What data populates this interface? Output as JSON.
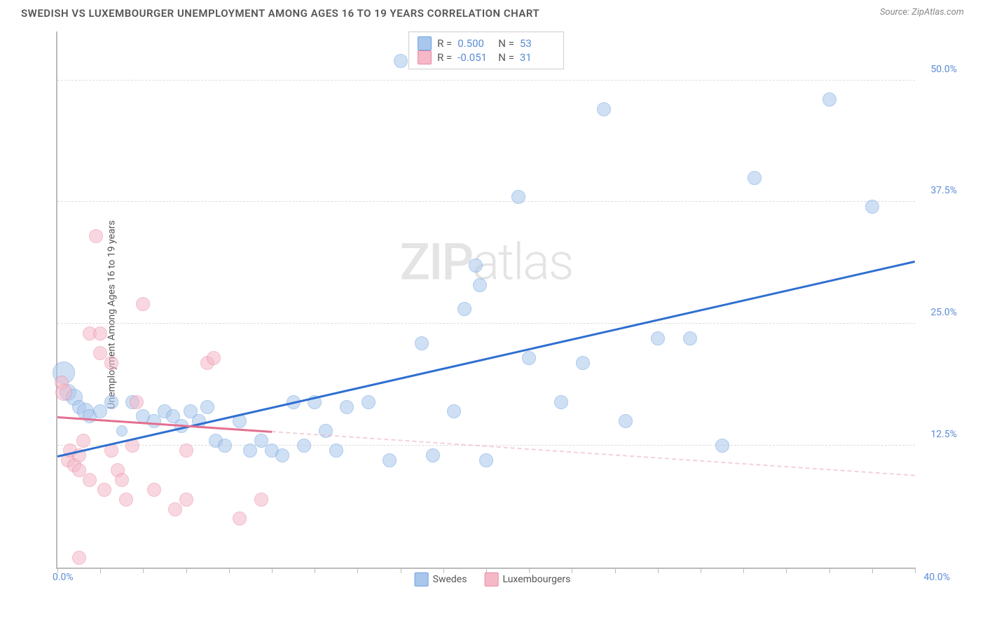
{
  "title": "SWEDISH VS LUXEMBOURGER UNEMPLOYMENT AMONG AGES 16 TO 19 YEARS CORRELATION CHART",
  "source_label": "Source: ZipAtlas.com",
  "y_label": "Unemployment Among Ages 16 to 19 years",
  "watermark": {
    "part1": "ZIP",
    "part2": "atlas"
  },
  "chart": {
    "type": "scatter",
    "xlim": [
      0,
      40
    ],
    "ylim": [
      0,
      55
    ],
    "x_axis_label_left": "0.0%",
    "x_axis_label_right": "40.0%",
    "y_ticks": [
      {
        "v": 12.5,
        "label": "12.5%"
      },
      {
        "v": 25.0,
        "label": "25.0%"
      },
      {
        "v": 37.5,
        "label": "37.5%"
      },
      {
        "v": 50.0,
        "label": "50.0%"
      }
    ],
    "y_grid_dashed": true,
    "x_tick_positions": [
      0,
      2,
      4,
      6,
      8,
      10,
      12,
      14,
      16,
      18,
      20,
      22,
      24,
      26,
      28,
      30,
      32,
      34,
      36,
      38,
      40
    ],
    "background_color": "#ffffff",
    "grid_color": "#dddddd",
    "axis_color": "#bbbbbb",
    "tick_label_color": "#5b8dd6",
    "series": [
      {
        "name": "Swedes",
        "fill_color": "#a9c7ec",
        "stroke_color": "#6d9fe0",
        "fill_opacity": 0.55,
        "marker_radius_range": [
          8,
          16
        ],
        "stats": {
          "R": "0.500",
          "N": "53"
        },
        "trend": {
          "x1": 0,
          "y1": 11.5,
          "x2": 40,
          "y2": 31.5,
          "color": "#2f6fd0",
          "width": 3
        },
        "points": [
          {
            "x": 0.3,
            "y": 20,
            "r": 16
          },
          {
            "x": 0.5,
            "y": 18,
            "r": 12
          },
          {
            "x": 0.8,
            "y": 17.5,
            "r": 12
          },
          {
            "x": 1.0,
            "y": 16.5,
            "r": 10
          },
          {
            "x": 1.3,
            "y": 16,
            "r": 12
          },
          {
            "x": 1.5,
            "y": 15.5,
            "r": 10
          },
          {
            "x": 2.0,
            "y": 16,
            "r": 10
          },
          {
            "x": 2.5,
            "y": 17,
            "r": 10
          },
          {
            "x": 3.0,
            "y": 14,
            "r": 8
          },
          {
            "x": 3.5,
            "y": 17,
            "r": 10
          },
          {
            "x": 4.0,
            "y": 15.5,
            "r": 10
          },
          {
            "x": 4.5,
            "y": 15,
            "r": 10
          },
          {
            "x": 5.0,
            "y": 16,
            "r": 10
          },
          {
            "x": 5.4,
            "y": 15.5,
            "r": 10
          },
          {
            "x": 5.8,
            "y": 14.5,
            "r": 10
          },
          {
            "x": 6.2,
            "y": 16,
            "r": 10
          },
          {
            "x": 6.6,
            "y": 15,
            "r": 10
          },
          {
            "x": 7.0,
            "y": 16.5,
            "r": 10
          },
          {
            "x": 7.4,
            "y": 13,
            "r": 10
          },
          {
            "x": 7.8,
            "y": 12.5,
            "r": 10
          },
          {
            "x": 8.5,
            "y": 15,
            "r": 10
          },
          {
            "x": 9.0,
            "y": 12,
            "r": 10
          },
          {
            "x": 9.5,
            "y": 13,
            "r": 10
          },
          {
            "x": 10.0,
            "y": 12,
            "r": 10
          },
          {
            "x": 10.5,
            "y": 11.5,
            "r": 10
          },
          {
            "x": 11.0,
            "y": 17,
            "r": 10
          },
          {
            "x": 11.5,
            "y": 12.5,
            "r": 10
          },
          {
            "x": 12.0,
            "y": 17,
            "r": 10
          },
          {
            "x": 12.5,
            "y": 14,
            "r": 10
          },
          {
            "x": 13.0,
            "y": 12,
            "r": 10
          },
          {
            "x": 13.5,
            "y": 16.5,
            "r": 10
          },
          {
            "x": 14.5,
            "y": 17,
            "r": 10
          },
          {
            "x": 15.5,
            "y": 11,
            "r": 10
          },
          {
            "x": 16.0,
            "y": 52,
            "r": 10
          },
          {
            "x": 17.0,
            "y": 23,
            "r": 10
          },
          {
            "x": 17.5,
            "y": 11.5,
            "r": 10
          },
          {
            "x": 18.5,
            "y": 16,
            "r": 10
          },
          {
            "x": 19.0,
            "y": 26.5,
            "r": 10
          },
          {
            "x": 19.5,
            "y": 31,
            "r": 10
          },
          {
            "x": 19.7,
            "y": 29,
            "r": 10
          },
          {
            "x": 20.0,
            "y": 11,
            "r": 10
          },
          {
            "x": 21.5,
            "y": 38,
            "r": 10
          },
          {
            "x": 22.0,
            "y": 21.5,
            "r": 10
          },
          {
            "x": 23.5,
            "y": 17,
            "r": 10
          },
          {
            "x": 24.5,
            "y": 21,
            "r": 10
          },
          {
            "x": 25.5,
            "y": 47,
            "r": 10
          },
          {
            "x": 26.5,
            "y": 15,
            "r": 10
          },
          {
            "x": 28.0,
            "y": 23.5,
            "r": 10
          },
          {
            "x": 29.5,
            "y": 23.5,
            "r": 10
          },
          {
            "x": 31.0,
            "y": 12.5,
            "r": 10
          },
          {
            "x": 32.5,
            "y": 40,
            "r": 10
          },
          {
            "x": 36.0,
            "y": 48,
            "r": 10
          },
          {
            "x": 38.0,
            "y": 37,
            "r": 10
          }
        ]
      },
      {
        "name": "Luxembourgers",
        "fill_color": "#f5b8c8",
        "stroke_color": "#e88aa3",
        "fill_opacity": 0.55,
        "marker_radius_range": [
          8,
          14
        ],
        "stats": {
          "R": "-0.051",
          "N": "31"
        },
        "trend_solid": {
          "x1": 0,
          "y1": 15.5,
          "x2": 10,
          "y2": 14.0,
          "color": "#e36f8f",
          "width": 3
        },
        "trend_dashed": {
          "x1": 10,
          "y1": 14.0,
          "x2": 40,
          "y2": 9.5,
          "color": "#e8a5b6",
          "width": 2
        },
        "points": [
          {
            "x": 0.2,
            "y": 19,
            "r": 10
          },
          {
            "x": 0.3,
            "y": 18,
            "r": 12
          },
          {
            "x": 0.5,
            "y": 11,
            "r": 10
          },
          {
            "x": 0.6,
            "y": 12,
            "r": 10
          },
          {
            "x": 0.8,
            "y": 10.5,
            "r": 10
          },
          {
            "x": 1.0,
            "y": 10,
            "r": 10
          },
          {
            "x": 1.0,
            "y": 11.5,
            "r": 10
          },
          {
            "x": 1.2,
            "y": 13,
            "r": 10
          },
          {
            "x": 1.5,
            "y": 24,
            "r": 10
          },
          {
            "x": 1.5,
            "y": 9,
            "r": 10
          },
          {
            "x": 1.8,
            "y": 34,
            "r": 10
          },
          {
            "x": 2.0,
            "y": 22,
            "r": 10
          },
          {
            "x": 2.0,
            "y": 24,
            "r": 10
          },
          {
            "x": 2.2,
            "y": 8,
            "r": 10
          },
          {
            "x": 2.5,
            "y": 21,
            "r": 10
          },
          {
            "x": 2.5,
            "y": 12,
            "r": 10
          },
          {
            "x": 2.8,
            "y": 10,
            "r": 10
          },
          {
            "x": 3.0,
            "y": 9,
            "r": 10
          },
          {
            "x": 3.2,
            "y": 7,
            "r": 10
          },
          {
            "x": 3.5,
            "y": 12.5,
            "r": 10
          },
          {
            "x": 3.7,
            "y": 17,
            "r": 10
          },
          {
            "x": 4.0,
            "y": 27,
            "r": 10
          },
          {
            "x": 4.5,
            "y": 8,
            "r": 10
          },
          {
            "x": 1.0,
            "y": 1,
            "r": 10
          },
          {
            "x": 5.5,
            "y": 6,
            "r": 10
          },
          {
            "x": 6.0,
            "y": 7,
            "r": 10
          },
          {
            "x": 6.0,
            "y": 12,
            "r": 10
          },
          {
            "x": 7.0,
            "y": 21,
            "r": 10
          },
          {
            "x": 7.3,
            "y": 21.5,
            "r": 10
          },
          {
            "x": 8.5,
            "y": 5,
            "r": 10
          },
          {
            "x": 9.5,
            "y": 7,
            "r": 10
          }
        ]
      }
    ],
    "stats_box_labels": {
      "R": "R =",
      "N": "N ="
    },
    "bottom_legend": [
      {
        "label": "Swedes",
        "fill": "#a9c7ec",
        "stroke": "#6d9fe0"
      },
      {
        "label": "Luxembourgers",
        "fill": "#f5b8c8",
        "stroke": "#e88aa3"
      }
    ]
  }
}
